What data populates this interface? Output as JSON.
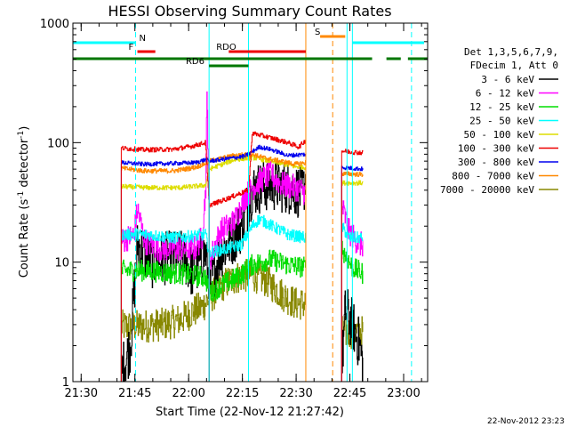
{
  "chart_data": {
    "type": "line",
    "title": "HESSI Observing Summary Count Rates",
    "xlabel": "Start Time (22-Nov-12 21:27:42)",
    "ylabel_main": "Count Rate (s",
    "ylabel_sup1": "-1",
    "ylabel_mid": " detector",
    "ylabel_sup2": "-1",
    "ylabel_end": ")",
    "footer_date": "22-Nov-2012 23:23",
    "yscale": "log",
    "ylim": [
      1,
      1000
    ],
    "xlim_minutes": [
      0,
      99
    ],
    "x_ticks": [
      {
        "label": "21:30",
        "m": 2.3
      },
      {
        "label": "21:45",
        "m": 17.3
      },
      {
        "label": "22:00",
        "m": 32.3
      },
      {
        "label": "22:15",
        "m": 47.3
      },
      {
        "label": "22:30",
        "m": 62.3
      },
      {
        "label": "22:45",
        "m": 77.3
      },
      {
        "label": "23:00",
        "m": 92.3
      }
    ],
    "y_ticks": [
      {
        "label": "1",
        "v": 1
      },
      {
        "label": "10",
        "v": 10
      },
      {
        "label": "100",
        "v": 100
      },
      {
        "label": "1000",
        "v": 1000
      }
    ],
    "legend": {
      "header1": "Det 1,3,5,6,7,9,",
      "header2": "FDecim 1, Att 0",
      "entries": [
        {
          "label": "3 - 6 keV",
          "color": "#000000"
        },
        {
          "label": "6 - 12 keV",
          "color": "#ff00ff"
        },
        {
          "label": "12 - 25 keV",
          "color": "#00dd00"
        },
        {
          "label": "25 - 50 keV",
          "color": "#00ffff"
        },
        {
          "label": "50 - 100 keV",
          "color": "#dddd00"
        },
        {
          "label": "100 - 300 keV",
          "color": "#ee0000"
        },
        {
          "label": "300 - 800 keV",
          "color": "#0000ee"
        },
        {
          "label": "800 - 7000 keV",
          "color": "#ff8800"
        },
        {
          "label": "7000 - 20000 keV",
          "color": "#888800"
        }
      ]
    },
    "flag_bars": [
      {
        "label": "N",
        "color": "#00ffff",
        "m0": 0,
        "m1": 17.5,
        "y": 1,
        "label_m": 18.5
      },
      {
        "label": "N",
        "color": "#00ffff",
        "m0": 78,
        "m1": 98,
        "y": 1,
        "label_m": null
      },
      {
        "label": "S",
        "color": "#ff8800",
        "m0": 69,
        "m1": 76,
        "y": 0,
        "label_m": 67.5
      },
      {
        "label": "F",
        "color": "#ee0000",
        "m0": 18,
        "m1": 23,
        "y": 2,
        "label_m": 15.5
      },
      {
        "label": "RDO",
        "color": "#ee0000",
        "m0": 43.5,
        "m1": 65,
        "y": 2,
        "label_m": 40
      },
      {
        "label": "",
        "color": "#007700",
        "m0": 0,
        "m1": 83.5,
        "y": 3,
        "label_m": null
      },
      {
        "label": "",
        "color": "#007700",
        "m0": 87.5,
        "m1": 91.5,
        "y": 3,
        "label_m": null
      },
      {
        "label": "",
        "color": "#007700",
        "m0": 93.5,
        "m1": 99,
        "y": 3,
        "label_m": null
      },
      {
        "label": "RD6",
        "color": "#007700",
        "m0": 38,
        "m1": 49,
        "y": 4,
        "label_m": 31.5
      }
    ],
    "vlines": [
      {
        "m": 17.5,
        "color": "#00ffff",
        "dash": true
      },
      {
        "m": 38.0,
        "color": "#00ffff",
        "dash": false
      },
      {
        "m": 49.0,
        "color": "#00ffff",
        "dash": false
      },
      {
        "m": 65.0,
        "color": "#ff8800",
        "dash": false
      },
      {
        "m": 72.5,
        "color": "#ff8800",
        "dash": true
      },
      {
        "m": 76.5,
        "color": "#00ffff",
        "dash": false
      },
      {
        "m": 78.0,
        "color": "#00ffff",
        "dash": false
      },
      {
        "m": 94.5,
        "color": "#00ffff",
        "dash": true
      }
    ],
    "segments": [
      {
        "m0": 13.5,
        "m1": 38.0
      },
      {
        "m0": 38.0,
        "m1": 65.0
      },
      {
        "m0": 75.0,
        "m1": 81.0
      }
    ],
    "series": [
      {
        "name": "3 - 6 keV",
        "color": "#000000",
        "noise": 0.45,
        "knots": [
          [
            13.5,
            1.2
          ],
          [
            16,
            2
          ],
          [
            18,
            14
          ],
          [
            22,
            10
          ],
          [
            27,
            11
          ],
          [
            31,
            11
          ],
          [
            33.5,
            8
          ],
          [
            37,
            12
          ],
          [
            38,
            6
          ],
          [
            41,
            12
          ],
          [
            44,
            15
          ],
          [
            47,
            20
          ],
          [
            50,
            40
          ],
          [
            55,
            45
          ],
          [
            60,
            42
          ],
          [
            64,
            38
          ],
          [
            65,
            50
          ],
          [
            75,
            1.3
          ],
          [
            76,
            4
          ],
          [
            78,
            3
          ],
          [
            80,
            2
          ],
          [
            81,
            1.3
          ]
        ]
      },
      {
        "name": "6 - 12 keV",
        "color": "#ff00ff",
        "noise": 0.22,
        "knots": [
          [
            13.5,
            15
          ],
          [
            17,
            17
          ],
          [
            18,
            28
          ],
          [
            20,
            15
          ],
          [
            24,
            13
          ],
          [
            30,
            13
          ],
          [
            34,
            13
          ],
          [
            36,
            16
          ],
          [
            37,
            40
          ],
          [
            37.4,
            250
          ],
          [
            37.8,
            60
          ],
          [
            38,
            10
          ],
          [
            41,
            18
          ],
          [
            45,
            22
          ],
          [
            48,
            35
          ],
          [
            51,
            45
          ],
          [
            55,
            55
          ],
          [
            58,
            45
          ],
          [
            62,
            42
          ],
          [
            65,
            38
          ],
          [
            75,
            30
          ],
          [
            77,
            18
          ],
          [
            80,
            14
          ],
          [
            81,
            14
          ]
        ]
      },
      {
        "name": "12 - 25 keV",
        "color": "#00dd00",
        "noise": 0.18,
        "knots": [
          [
            13.5,
            8.5
          ],
          [
            20,
            8.5
          ],
          [
            30,
            8
          ],
          [
            37,
            7.5
          ],
          [
            38,
            5.5
          ],
          [
            42,
            6.5
          ],
          [
            46,
            7.5
          ],
          [
            50,
            9.5
          ],
          [
            55,
            10.5
          ],
          [
            60,
            9.5
          ],
          [
            65,
            9
          ],
          [
            75,
            13
          ],
          [
            78,
            9
          ],
          [
            81,
            8
          ]
        ]
      },
      {
        "name": "25 - 50 keV",
        "color": "#00ffff",
        "noise": 0.1,
        "knots": [
          [
            13.5,
            17
          ],
          [
            18,
            17
          ],
          [
            21,
            17
          ],
          [
            28,
            16
          ],
          [
            33,
            16.5
          ],
          [
            37,
            17
          ],
          [
            38,
            12
          ],
          [
            43,
            13
          ],
          [
            47,
            14
          ],
          [
            50,
            20
          ],
          [
            52,
            23
          ],
          [
            57,
            19
          ],
          [
            60,
            17
          ],
          [
            65,
            16
          ],
          [
            75,
            20
          ],
          [
            77,
            16
          ],
          [
            81,
            16
          ]
        ]
      },
      {
        "name": "50 - 100 keV",
        "color": "#dddd00",
        "noise": 0.04,
        "knots": [
          [
            13.5,
            43
          ],
          [
            20,
            42
          ],
          [
            30,
            42
          ],
          [
            37,
            44
          ],
          [
            38,
            60
          ],
          [
            45,
            72
          ],
          [
            50,
            75
          ],
          [
            53,
            72
          ],
          [
            58,
            67
          ],
          [
            62,
            63
          ],
          [
            65,
            62
          ],
          [
            75,
            46
          ],
          [
            81,
            46
          ]
        ]
      },
      {
        "name": "100 - 300 keV",
        "color": "#ee0000",
        "noise": 0.04,
        "knots": [
          [
            13.5,
            90
          ],
          [
            20,
            87
          ],
          [
            28,
            88
          ],
          [
            33,
            93
          ],
          [
            37,
            100
          ],
          [
            38,
            30
          ],
          [
            42,
            33
          ],
          [
            46,
            37
          ],
          [
            49,
            40
          ],
          [
            50,
            120
          ],
          [
            55,
            110
          ],
          [
            60,
            100
          ],
          [
            63,
            92
          ],
          [
            65,
            105
          ],
          [
            75,
            85
          ],
          [
            81,
            82
          ]
        ]
      },
      {
        "name": "300 - 800 keV",
        "color": "#0000ee",
        "noise": 0.035,
        "knots": [
          [
            13.5,
            68
          ],
          [
            20,
            66
          ],
          [
            28,
            67
          ],
          [
            34,
            68
          ],
          [
            37,
            72
          ],
          [
            38,
            70
          ],
          [
            44,
            74
          ],
          [
            48,
            77
          ],
          [
            52,
            92
          ],
          [
            55,
            88
          ],
          [
            60,
            78
          ],
          [
            65,
            80
          ],
          [
            75,
            62
          ],
          [
            81,
            60
          ]
        ]
      },
      {
        "name": "800 - 7000 keV",
        "color": "#ff8800",
        "noise": 0.04,
        "knots": [
          [
            13.5,
            61
          ],
          [
            20,
            58
          ],
          [
            28,
            58
          ],
          [
            34,
            62
          ],
          [
            37,
            67
          ],
          [
            38,
            70
          ],
          [
            45,
            78
          ],
          [
            50,
            80
          ],
          [
            53,
            75
          ],
          [
            58,
            70
          ],
          [
            62,
            66
          ],
          [
            65,
            68
          ],
          [
            75,
            55
          ],
          [
            81,
            54
          ]
        ]
      },
      {
        "name": "7000 - 20000 keV",
        "color": "#888800",
        "noise": 0.28,
        "knots": [
          [
            13.5,
            2.9
          ],
          [
            18,
            2.9
          ],
          [
            25,
            3.0
          ],
          [
            30,
            3.3
          ],
          [
            33,
            3.8
          ],
          [
            36,
            4.2
          ],
          [
            38,
            5
          ],
          [
            42,
            6.5
          ],
          [
            46,
            7.5
          ],
          [
            50,
            7.8
          ],
          [
            54,
            7
          ],
          [
            58,
            5.5
          ],
          [
            62,
            4.5
          ],
          [
            65,
            4.5
          ],
          [
            75,
            2.6
          ],
          [
            81,
            2.6
          ]
        ]
      }
    ]
  }
}
